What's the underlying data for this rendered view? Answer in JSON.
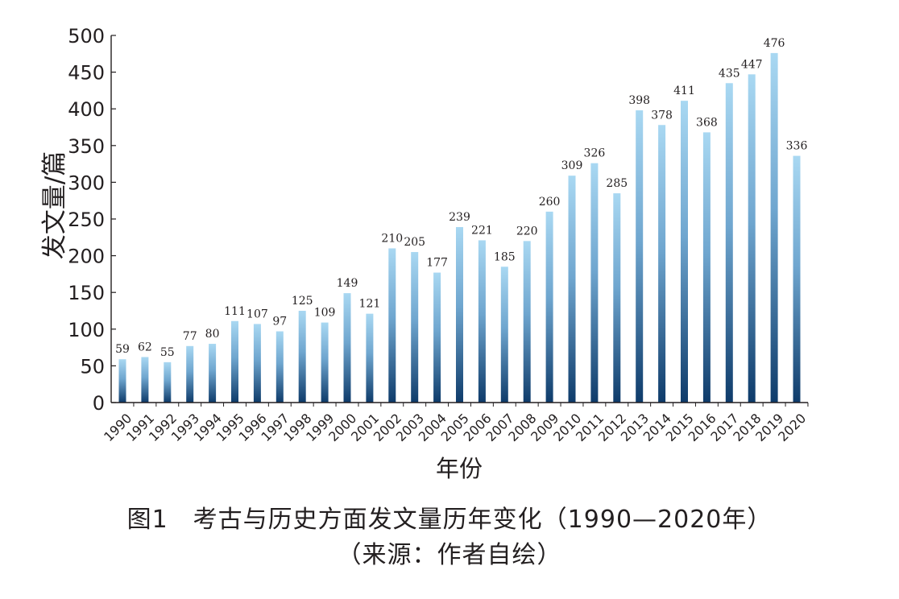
{
  "chart_data": {
    "type": "bar",
    "categories": [
      "1990",
      "1991",
      "1992",
      "1993",
      "1994",
      "1995",
      "1996",
      "1997",
      "1998",
      "1999",
      "2000",
      "2001",
      "2002",
      "2003",
      "2004",
      "2005",
      "2006",
      "2007",
      "2008",
      "2009",
      "2010",
      "2011",
      "2012",
      "2013",
      "2014",
      "2015",
      "2016",
      "2017",
      "2018",
      "2019",
      "2020"
    ],
    "values": [
      59,
      62,
      55,
      77,
      80,
      111,
      107,
      97,
      125,
      109,
      149,
      121,
      210,
      205,
      177,
      239,
      221,
      185,
      220,
      260,
      309,
      326,
      285,
      398,
      378,
      411,
      368,
      435,
      447,
      476,
      336
    ],
    "xlabel": "年份",
    "ylabel": "发文量/篇",
    "ylim": [
      0,
      500
    ],
    "yticks": [
      0,
      50,
      100,
      150,
      200,
      250,
      300,
      350,
      400,
      450,
      500
    ],
    "data_labels": true,
    "grid": false,
    "legend": "none",
    "colors": {
      "bar_top": "#a9d8f2",
      "bar_bottom": "#0e3b6a",
      "axis": "#231f20"
    }
  },
  "caption": {
    "line1": "图1　考古与历史方面发文量历年变化（1990—2020年）",
    "line2": "（来源：作者自绘）"
  }
}
